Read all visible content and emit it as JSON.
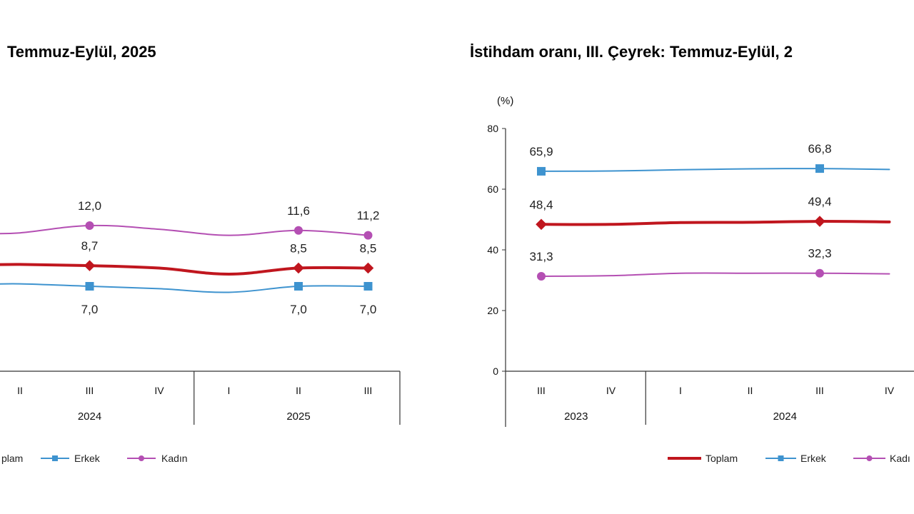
{
  "chart_data": [
    {
      "type": "line",
      "title": "Temmuz-Eylül, 2025",
      "categories": [
        "II",
        "III",
        "IV",
        "I",
        "II",
        "III"
      ],
      "year_groups": [
        {
          "label": "2024",
          "categories": [
            "II",
            "III",
            "IV"
          ]
        },
        {
          "label": "2025",
          "categories": [
            "I",
            "II",
            "III"
          ]
        }
      ],
      "ylim": [
        0,
        20
      ],
      "series": [
        {
          "name": "Toplam",
          "color": "#c0161e",
          "values": [
            8.8,
            8.7,
            8.5,
            8.0,
            8.5,
            8.5
          ],
          "labels": [
            "",
            "8,7",
            "",
            "",
            "8,5",
            "8,5"
          ],
          "markers": [
            false,
            true,
            false,
            false,
            true,
            true
          ]
        },
        {
          "name": "Erkek",
          "color": "#3e93cf",
          "values": [
            7.2,
            7.0,
            6.8,
            6.5,
            7.0,
            7.0
          ],
          "labels": [
            "",
            "7,0",
            "",
            "",
            "7,0",
            "7,0"
          ],
          "markers": [
            false,
            true,
            false,
            false,
            true,
            true
          ]
        },
        {
          "name": "Kadın",
          "color": "#b44fb3",
          "values": [
            11.4,
            12.0,
            11.7,
            11.2,
            11.6,
            11.2
          ],
          "labels": [
            "",
            "12,0",
            "",
            "",
            "11,6",
            "11,2"
          ],
          "markers": [
            false,
            true,
            false,
            false,
            true,
            true
          ]
        }
      ],
      "legend": [
        {
          "name": "Toplam",
          "display": "plam"
        },
        {
          "name": "Erkek",
          "display": "Erkek"
        },
        {
          "name": "Kadın",
          "display": "Kadın"
        }
      ]
    },
    {
      "type": "line",
      "title": "İstihdam oranı, III. Çeyrek:  Temmuz-Eylül, 2",
      "unit_label": "(%)",
      "categories": [
        "III",
        "IV",
        "I",
        "II",
        "III",
        "IV"
      ],
      "year_groups": [
        {
          "label": "2023",
          "categories": [
            "III",
            "IV"
          ]
        },
        {
          "label": "2024",
          "categories": [
            "I",
            "II",
            "III",
            "IV"
          ]
        }
      ],
      "ylim": [
        0,
        80
      ],
      "yticks": [
        "0",
        "20",
        "40",
        "60",
        "80"
      ],
      "series": [
        {
          "name": "Toplam",
          "color": "#c0161e",
          "values": [
            48.4,
            48.4,
            49.0,
            49.1,
            49.4,
            49.2
          ],
          "labels": [
            "48,4",
            "",
            "",
            "",
            "49,4",
            ""
          ],
          "markers": [
            true,
            false,
            false,
            false,
            true,
            false
          ]
        },
        {
          "name": "Erkek",
          "color": "#3e93cf",
          "values": [
            65.9,
            66.0,
            66.4,
            66.7,
            66.8,
            66.5
          ],
          "labels": [
            "65,9",
            "",
            "",
            "",
            "66,8",
            ""
          ],
          "markers": [
            true,
            false,
            false,
            false,
            true,
            false
          ]
        },
        {
          "name": "Kadın",
          "color": "#b44fb3",
          "values": [
            31.3,
            31.5,
            32.3,
            32.3,
            32.3,
            32.1
          ],
          "labels": [
            "31,3",
            "",
            "",
            "",
            "32,3",
            ""
          ],
          "markers": [
            true,
            false,
            false,
            false,
            true,
            false
          ]
        }
      ],
      "legend": [
        {
          "name": "Toplam",
          "display": "Toplam"
        },
        {
          "name": "Erkek",
          "display": "Erkek"
        },
        {
          "name": "Kadın",
          "display": "Kadı"
        }
      ]
    }
  ]
}
